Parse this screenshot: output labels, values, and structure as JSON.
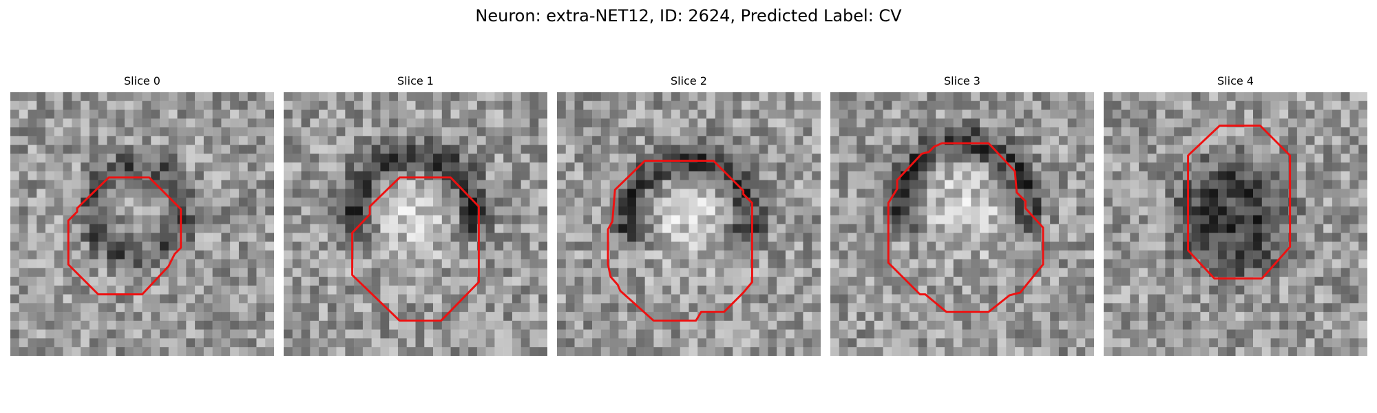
{
  "title": "Neuron: extra-NET12, ID: 2624, Predicted Label: CV",
  "outline_color": "#ee1111",
  "panels": [
    {
      "label": "Slice 0"
    },
    {
      "label": "Slice 1"
    },
    {
      "label": "Slice 2"
    },
    {
      "label": "Slice 3"
    },
    {
      "label": "Slice 4"
    }
  ]
}
